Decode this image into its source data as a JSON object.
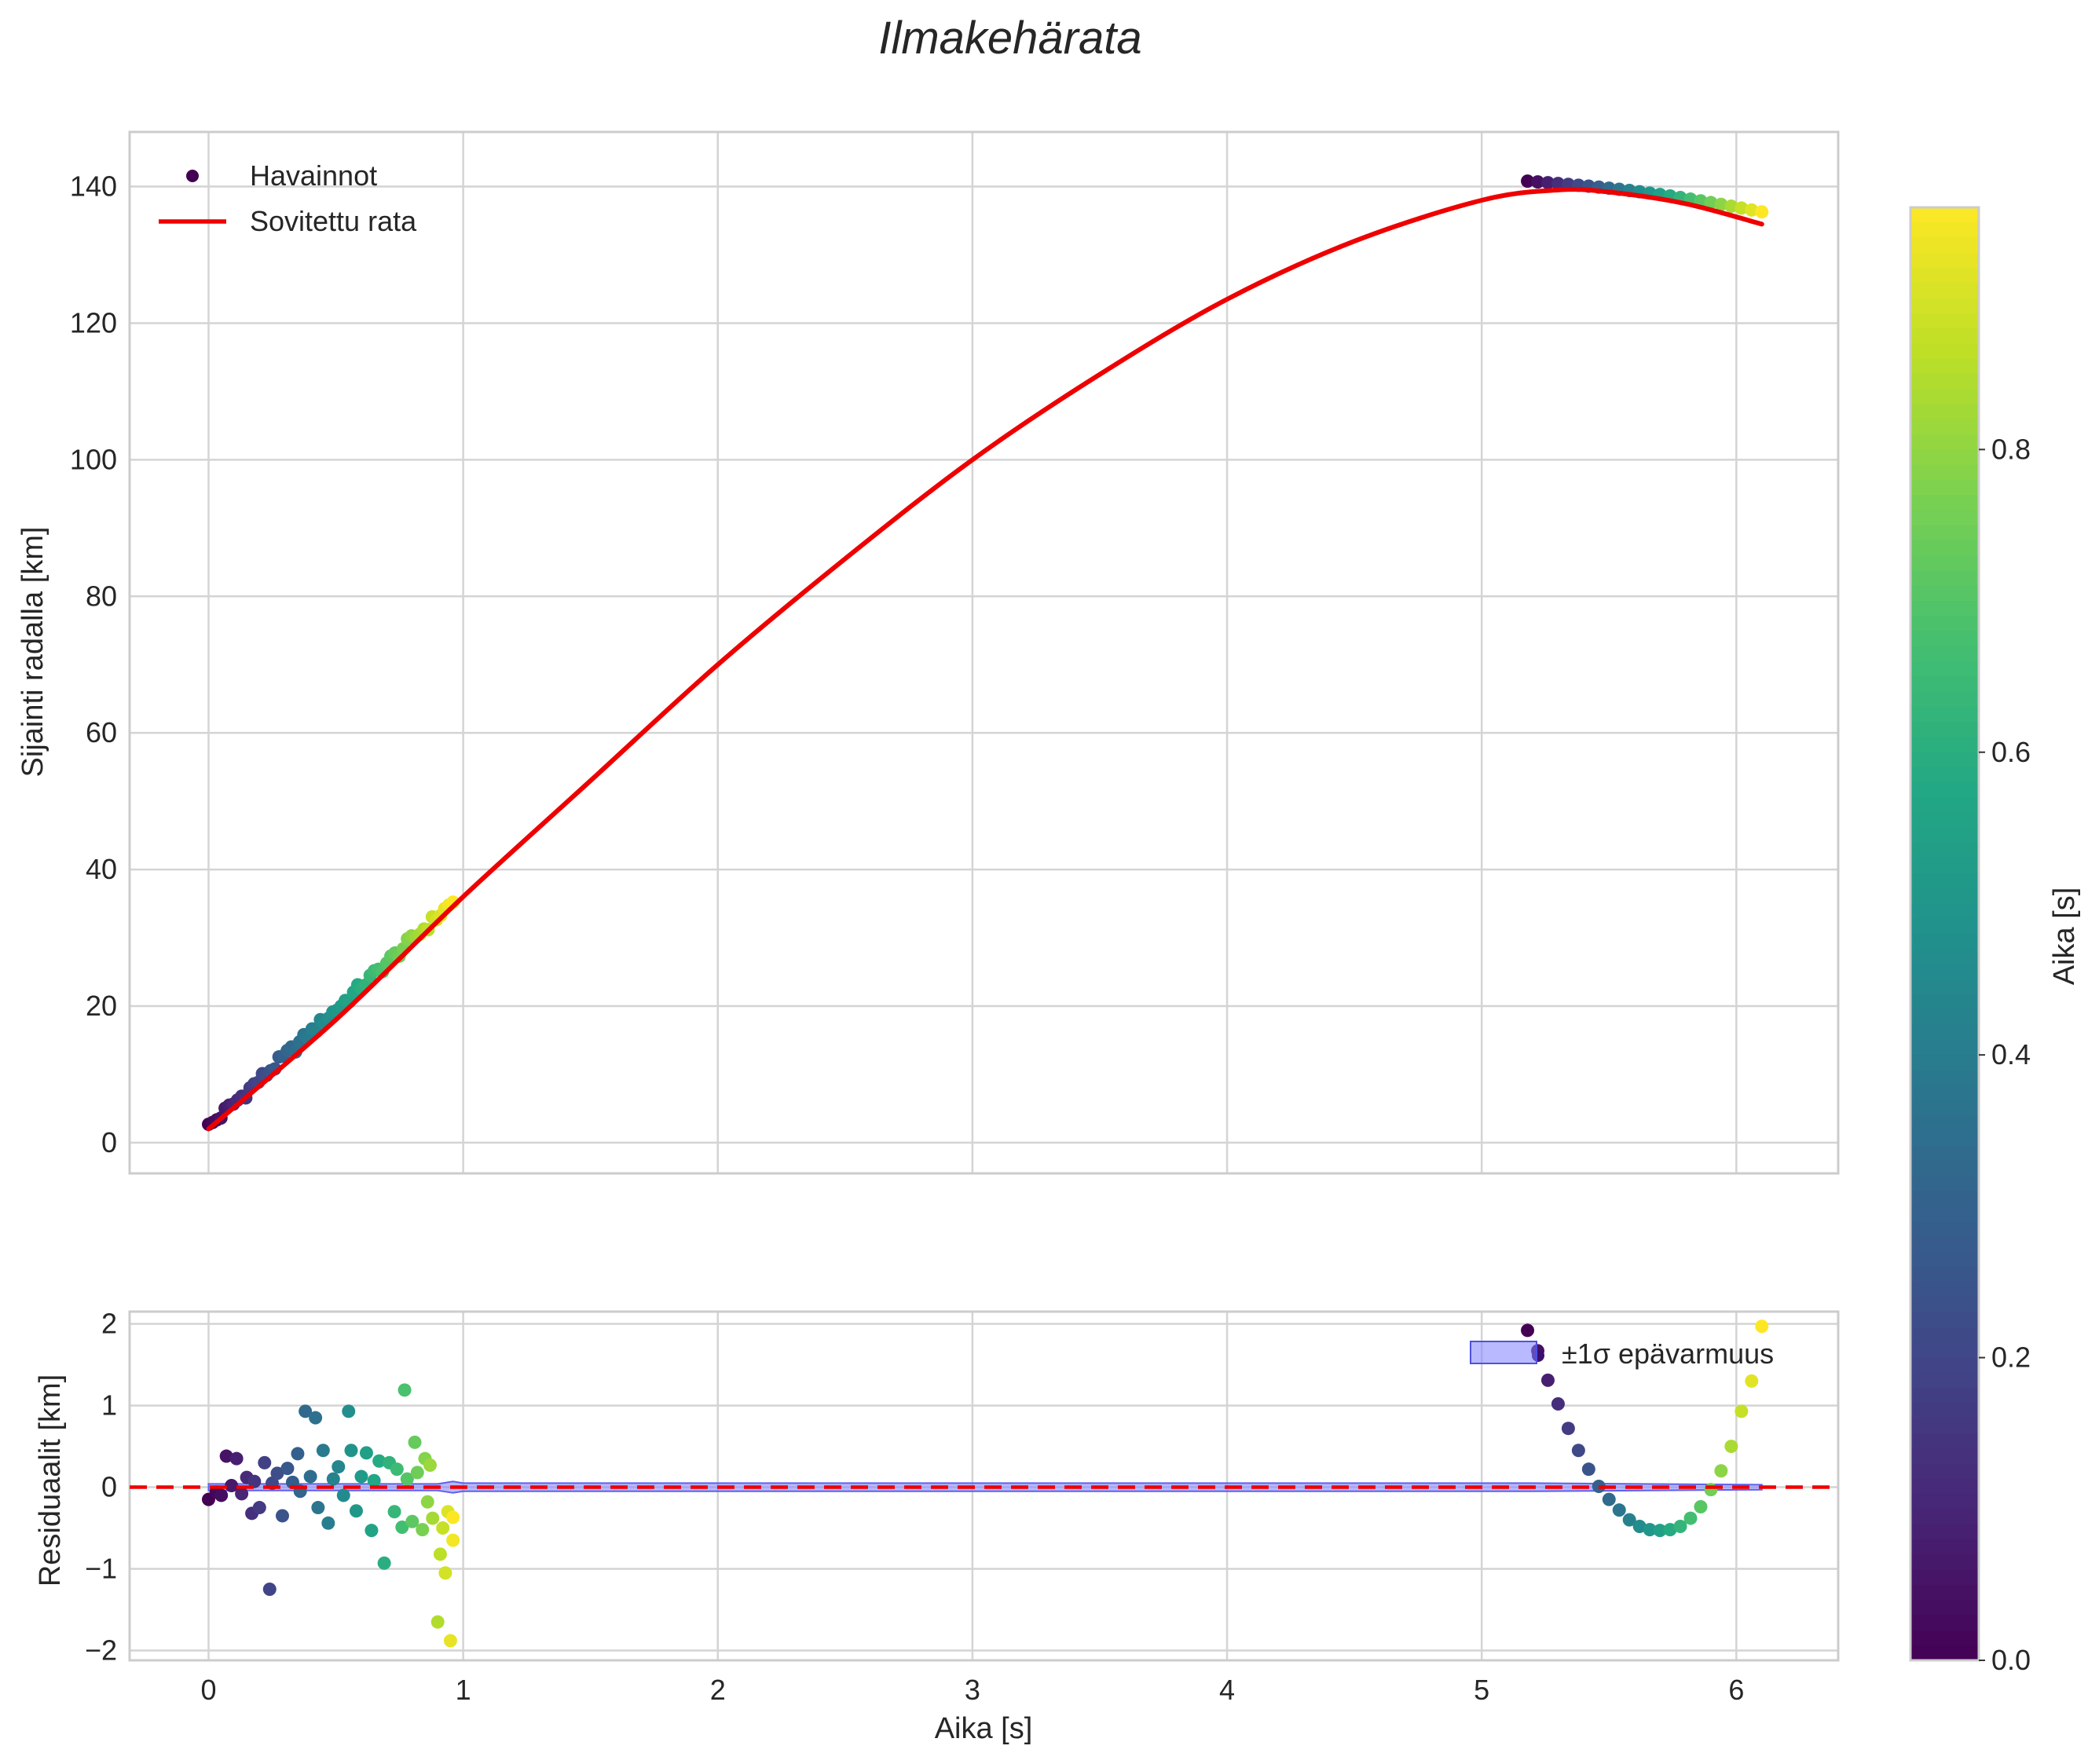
{
  "chart_data": [
    {
      "type": "scatter",
      "title": "Ilmakehärata",
      "xlabel": "",
      "ylabel": "Sijainti radalla [km]",
      "xlim": [
        -0.31,
        6.4
      ],
      "ylim": [
        -4.5,
        148
      ],
      "xticks": [
        0,
        1,
        2,
        3,
        4,
        5,
        6
      ],
      "yticks": [
        0,
        20,
        40,
        60,
        80,
        100,
        120,
        140
      ],
      "grid": true,
      "legend": "top-left",
      "legend_labels": {
        "observations": "Havainnot",
        "fit": "Sovitettu rata"
      },
      "observations": {
        "segments": [
          {
            "t_start": 0.0,
            "t_end": 0.96,
            "count": 60,
            "y_start": 2.3,
            "y_end": 35.2,
            "color_min": 0.0,
            "color_max": 0.96
          },
          {
            "t_start": 5.18,
            "t_end": 6.1,
            "count": 24,
            "y_start": 140.8,
            "y_end": 136.3,
            "color_min": 0.0,
            "color_max": 0.96
          }
        ]
      },
      "fit_curve": {
        "name": "Sovitettu rata",
        "color": "#ee0000",
        "x": [
          0.0,
          0.5,
          1.0,
          1.5,
          2.0,
          2.5,
          3.0,
          3.5,
          4.0,
          4.5,
          5.0,
          5.3,
          5.5,
          5.8,
          6.1
        ],
        "y": [
          2.0,
          18.0,
          36.0,
          53.0,
          70.0,
          85.5,
          100.0,
          112.5,
          123.5,
          132.0,
          138.0,
          139.5,
          139.2,
          137.5,
          134.5
        ]
      }
    },
    {
      "type": "scatter",
      "title": "",
      "xlabel": "Aika [s]",
      "ylabel": "Residuaalit [km]",
      "xlim": [
        -0.31,
        6.4
      ],
      "ylim": [
        -2.12,
        2.15
      ],
      "xticks": [
        0,
        1,
        2,
        3,
        4,
        5,
        6
      ],
      "yticks": [
        -2,
        -1,
        0,
        1,
        2
      ],
      "ytick_labels": [
        "−2",
        "−1",
        "0",
        "1",
        "2"
      ],
      "grid": true,
      "legend": "top-right",
      "legend_labels": {
        "band": "±1σ epävarmuus"
      },
      "zero_line_color": "#ee0000",
      "band_color": "#8080ff",
      "residuals_segment_1": [
        [
          0.0,
          -0.15
        ],
        [
          0.03,
          -0.06
        ],
        [
          0.05,
          -0.1
        ],
        [
          0.07,
          0.38
        ],
        [
          0.09,
          0.02
        ],
        [
          0.11,
          0.35
        ],
        [
          0.13,
          -0.08
        ],
        [
          0.15,
          0.12
        ],
        [
          0.17,
          -0.32
        ],
        [
          0.18,
          0.07
        ],
        [
          0.2,
          -0.25
        ],
        [
          0.22,
          0.3
        ],
        [
          0.24,
          -1.25
        ],
        [
          0.25,
          0.05
        ],
        [
          0.27,
          0.17
        ],
        [
          0.29,
          -0.35
        ],
        [
          0.31,
          0.23
        ],
        [
          0.33,
          0.06
        ],
        [
          0.35,
          0.41
        ],
        [
          0.36,
          -0.05
        ],
        [
          0.38,
          0.93
        ],
        [
          0.4,
          0.13
        ],
        [
          0.42,
          0.85
        ],
        [
          0.43,
          -0.25
        ],
        [
          0.45,
          0.45
        ],
        [
          0.47,
          -0.44
        ],
        [
          0.49,
          0.1
        ],
        [
          0.51,
          0.25
        ],
        [
          0.53,
          -0.1
        ],
        [
          0.55,
          0.93
        ],
        [
          0.56,
          0.45
        ],
        [
          0.58,
          -0.29
        ],
        [
          0.6,
          0.13
        ],
        [
          0.62,
          0.42
        ],
        [
          0.64,
          -0.53
        ],
        [
          0.65,
          0.08
        ],
        [
          0.67,
          0.32
        ],
        [
          0.69,
          -0.93
        ],
        [
          0.71,
          0.3
        ],
        [
          0.73,
          -0.3
        ],
        [
          0.74,
          0.22
        ],
        [
          0.76,
          -0.49
        ],
        [
          0.77,
          1.19
        ],
        [
          0.78,
          0.1
        ],
        [
          0.8,
          -0.42
        ],
        [
          0.81,
          0.55
        ],
        [
          0.82,
          0.18
        ],
        [
          0.84,
          -0.52
        ],
        [
          0.85,
          0.35
        ],
        [
          0.86,
          -0.18
        ],
        [
          0.87,
          0.27
        ],
        [
          0.88,
          -0.38
        ],
        [
          0.9,
          -1.65
        ],
        [
          0.91,
          -0.82
        ],
        [
          0.92,
          -0.5
        ],
        [
          0.93,
          -1.05
        ],
        [
          0.94,
          -0.3
        ],
        [
          0.95,
          -1.88
        ],
        [
          0.96,
          -0.65
        ],
        [
          0.96,
          -0.37
        ]
      ],
      "residuals_segment_2": [
        [
          5.18,
          1.92
        ],
        [
          5.22,
          1.67
        ],
        [
          5.26,
          1.31
        ],
        [
          5.3,
          1.02
        ],
        [
          5.34,
          0.72
        ],
        [
          5.38,
          0.45
        ],
        [
          5.42,
          0.22
        ],
        [
          5.46,
          0.01
        ],
        [
          5.5,
          -0.15
        ],
        [
          5.54,
          -0.28
        ],
        [
          5.58,
          -0.4
        ],
        [
          5.62,
          -0.48
        ],
        [
          5.66,
          -0.52
        ],
        [
          5.7,
          -0.53
        ],
        [
          5.74,
          -0.52
        ],
        [
          5.78,
          -0.48
        ],
        [
          5.82,
          -0.38
        ],
        [
          5.86,
          -0.24
        ],
        [
          5.9,
          -0.03
        ],
        [
          5.94,
          0.2
        ],
        [
          5.98,
          0.5
        ],
        [
          6.02,
          0.93
        ],
        [
          6.06,
          1.3
        ],
        [
          6.1,
          1.97
        ]
      ]
    },
    {
      "type": "colorbar",
      "label": "Aika [s]",
      "range": [
        0.0,
        0.96
      ],
      "ticks": [
        0.0,
        0.2,
        0.4,
        0.6,
        0.8
      ],
      "tick_labels": [
        "0.0",
        "0.2",
        "0.4",
        "0.6",
        "0.8"
      ],
      "colormap": "viridis"
    }
  ]
}
